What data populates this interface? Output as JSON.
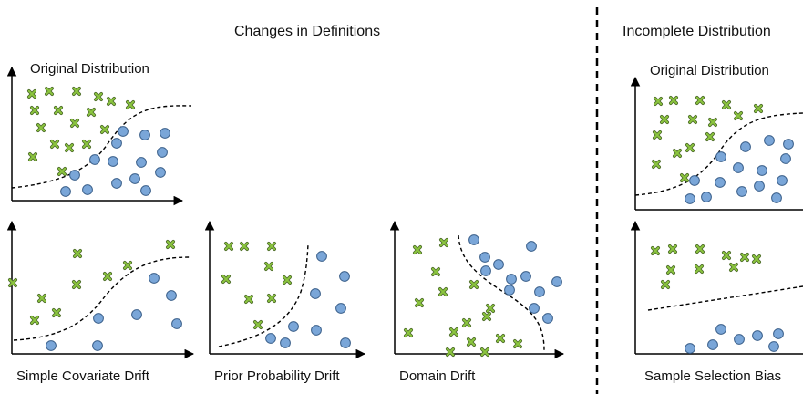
{
  "section_titles": {
    "changes": "Changes in Definitions",
    "incomplete": "Incomplete Distribution"
  },
  "panels": {
    "original_left": {
      "label": "Original Distribution"
    },
    "simple_covariate": {
      "label": "Simple Covariate Drift"
    },
    "prior_probability": {
      "label": "Prior Probability Drift"
    },
    "domain": {
      "label": "Domain Drift"
    },
    "original_right": {
      "label": "Original Distribution"
    },
    "sample_selection": {
      "label": "Sample Selection Bias"
    }
  },
  "colors": {
    "circle_fill": "#7aa6d8",
    "circle_stroke": "#3a5f8a",
    "cross": "#8cc63f",
    "cross_outline": "#4d6b2a",
    "axis": "#000000",
    "boundary": "#000000"
  },
  "legend_semantics": {
    "circle": "circle-class-marker",
    "cross": "cross-class-marker"
  }
}
